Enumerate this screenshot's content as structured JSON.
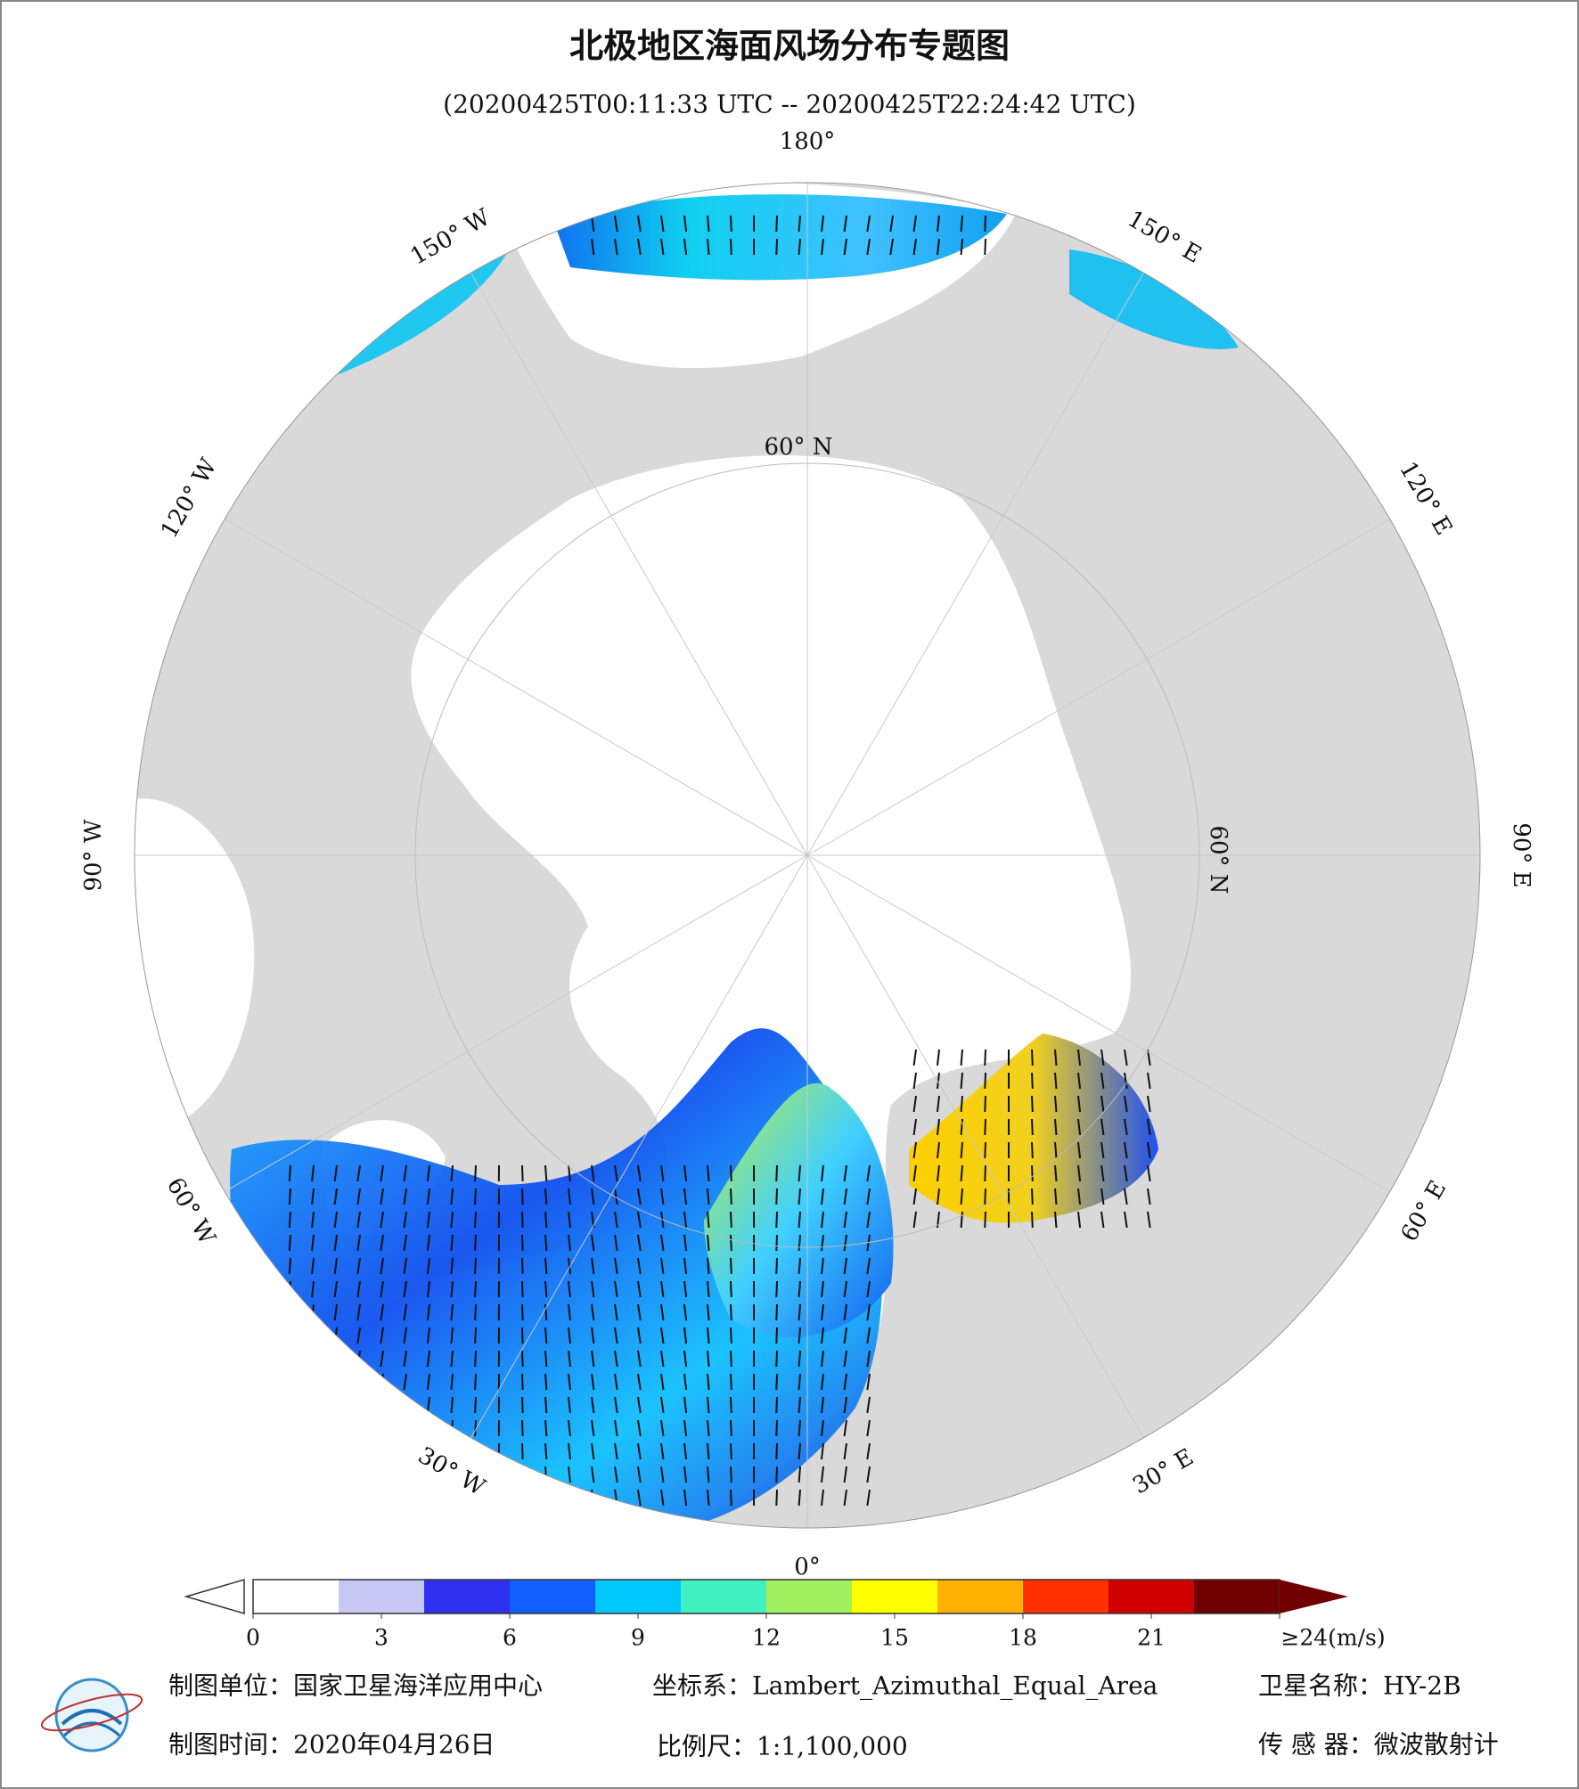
{
  "header": {
    "title": "北极地区海面风场分布专题图",
    "subtitle": "(20200425T00:11:33 UTC -- 20200425T22:24:42 UTC)"
  },
  "map": {
    "longitude_labels": [
      "180°",
      "150° E",
      "120° E",
      "90° E",
      "60° E",
      "30° E",
      "0°",
      "30° W",
      "60° W",
      "90° W",
      "120° W",
      "150° W"
    ],
    "latitude_labels": [
      "60° N",
      "60° N"
    ]
  },
  "colorbar": {
    "range": [
      0,
      24
    ],
    "ticks": [
      0,
      3,
      6,
      9,
      12,
      15,
      18,
      21,
      {
        "value": 24,
        "label": "≥24(m/s)"
      }
    ],
    "colors": [
      "#ffffff",
      "#c8c8f5",
      "#3030f0",
      "#1060ff",
      "#00c8ff",
      "#40f0c0",
      "#a0f060",
      "#ffff00",
      "#ffb000",
      "#ff3000",
      "#d00000",
      "#700000"
    ]
  },
  "footer": {
    "unit": "制图单位：国家卫星海洋应用中心",
    "crs": "坐标系：Lambert_Azimuthal_Equal_Area",
    "satellite": "卫星名称：HY-2B",
    "date": "制图时间：2020年04月26日",
    "scale": "比例尺：1:1,100,000",
    "sensor": "传 感 器：微波散射计"
  }
}
